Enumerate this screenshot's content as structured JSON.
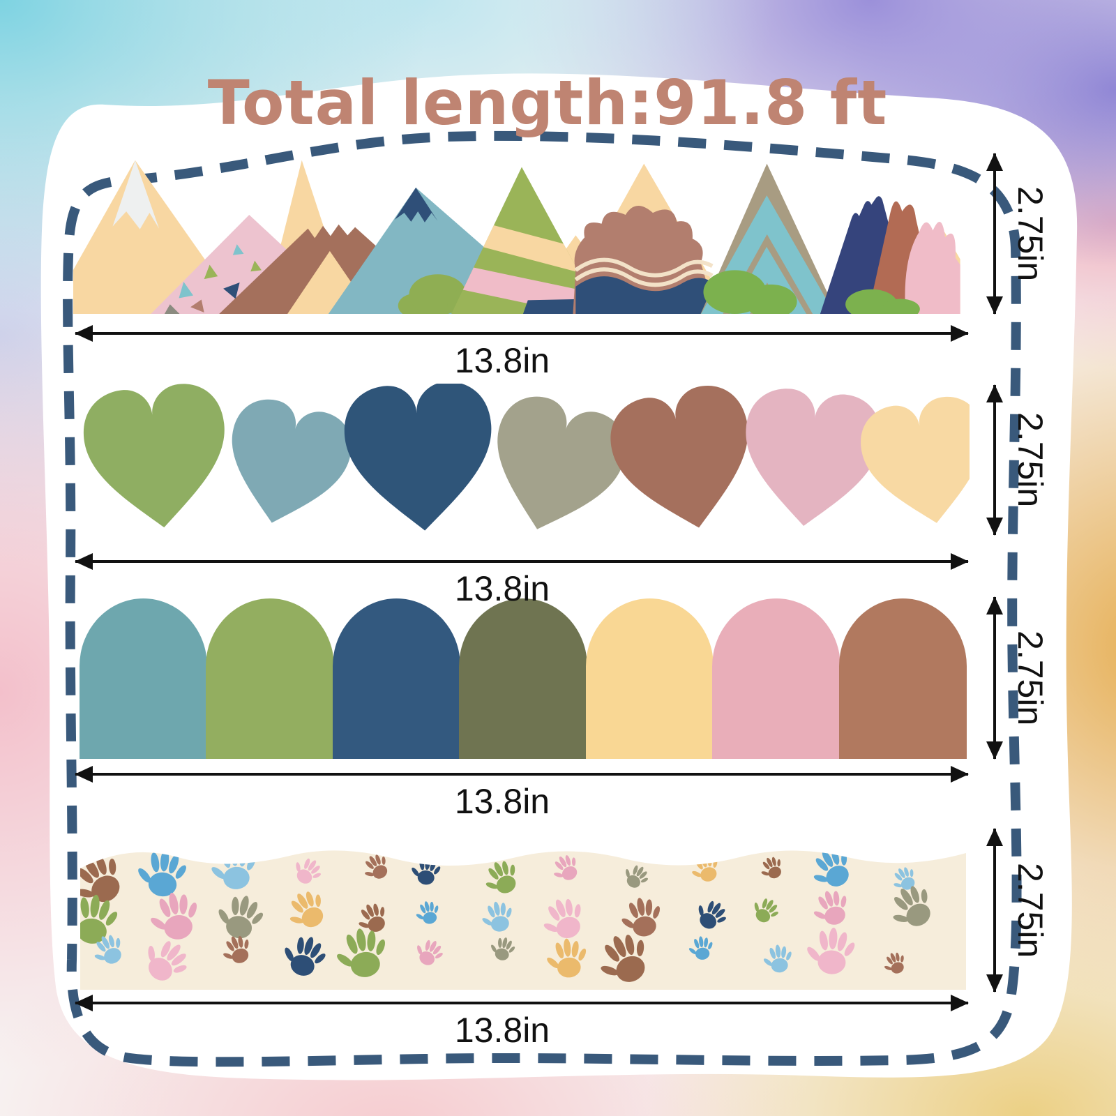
{
  "title": {
    "text": "Total length:91.8 ft",
    "color": "#bf8472"
  },
  "borders": [
    {
      "name": "mountains",
      "width_label": "13.8in",
      "height_label": "2.75in"
    },
    {
      "name": "hearts",
      "width_label": "13.8in",
      "height_label": "2.75in"
    },
    {
      "name": "scallops",
      "width_label": "13.8in",
      "height_label": "2.75in"
    },
    {
      "name": "handprints",
      "width_label": "13.8in",
      "height_label": "2.75in"
    }
  ],
  "palette": {
    "card": "#ffffff",
    "dash": "#39597b",
    "arrow": "#111111",
    "label": "#111111"
  },
  "hearts_palette": [
    "#8fae62",
    "#7fa9b4",
    "#2f5579",
    "#a3a28c",
    "#a5705d",
    "#e4b4c1",
    "#f8d9a3"
  ],
  "arches_palette": [
    "#6ea7ae",
    "#93ae60",
    "#33597f",
    "#6f7451",
    "#f9d794",
    "#e9aeb9",
    "#b1795f"
  ],
  "hands": {
    "strip": "#f6eddb",
    "colors": [
      "#9b6a4f",
      "#f0b6ca",
      "#8cab57",
      "#ebba6c",
      "#8cc3e0",
      "#2d4e76",
      "#99997f",
      "#5aa7d4",
      "#a4705a",
      "#e8a6bd"
    ]
  },
  "m": {
    "peach": "#f8d7a2",
    "snow": "#eef0f0",
    "pink": "#edc3cf",
    "brown": "#a4705c",
    "teal": "#82b7c3",
    "navy": "#2f4f78",
    "green": "#9ab458",
    "stripe_pink": "#f0bcc8",
    "mauve": "#b27e6e",
    "taupe": "#a89c82",
    "chevron_teal": "#7fc3cc",
    "deep_navy": "#35447c",
    "rust": "#b26b54",
    "bush": "#8fae53",
    "bush2": "#7cb14e",
    "cream_line": "#f3e2c8",
    "gray": "#8b8b80"
  }
}
